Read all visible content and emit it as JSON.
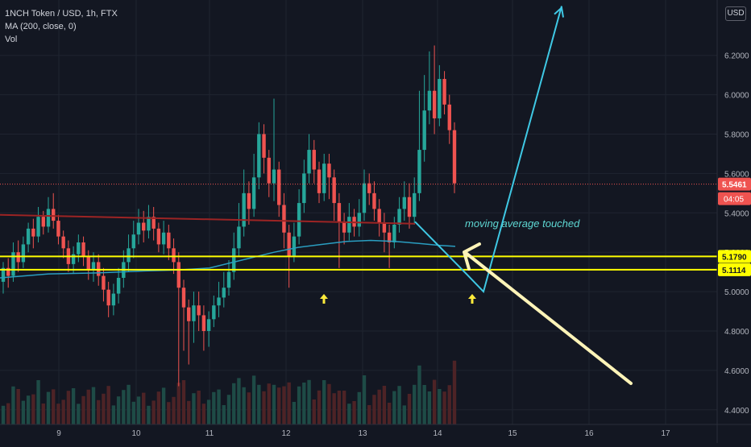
{
  "header": {
    "symbol": "1NCH Token / USD, 1h, FTX",
    "indicator": "MA (200, close, 0)",
    "volume": "Vol"
  },
  "currency": "USD",
  "price_tag": {
    "value": "5.5461",
    "countdown": "04:05",
    "color": "#ef5350"
  },
  "annotation": {
    "text": "moving average touched",
    "color": "#5ed7d3"
  },
  "colors": {
    "up": "#26a69a",
    "down": "#ef5350",
    "ma": "#2a9ec1",
    "level": "#ffff00",
    "trend": "#9c2424",
    "projection": "#3fc8e4",
    "pointer": "#fff4b8",
    "marker": "#ffeb3b"
  },
  "chart_data": {
    "type": "candlestick",
    "x_axis": {
      "ticks": [
        "9",
        "10",
        "11",
        "12",
        "13",
        "14",
        "15",
        "16",
        "17"
      ]
    },
    "y_axis": {
      "ticks": [
        "6.2000",
        "6.0000",
        "5.8000",
        "5.6000",
        "5.4000",
        "5.2000",
        "5.0000",
        "4.8000",
        "4.6000",
        "4.4000"
      ],
      "range": [
        4.37,
        6.45
      ]
    },
    "levels": [
      {
        "label": "5.1790",
        "value": 5.179
      },
      {
        "label": "5.1114",
        "value": 5.1114
      }
    ],
    "last_price": 5.5461,
    "ma_200": [
      [
        0,
        5.07
      ],
      [
        60,
        5.09
      ],
      [
        120,
        5.095
      ],
      [
        180,
        5.105
      ],
      [
        220,
        5.11
      ],
      [
        260,
        5.12
      ],
      [
        300,
        5.16
      ],
      [
        340,
        5.2
      ],
      [
        370,
        5.225
      ],
      [
        400,
        5.24
      ],
      [
        430,
        5.255
      ],
      [
        460,
        5.26
      ],
      [
        490,
        5.255
      ],
      [
        520,
        5.245
      ],
      [
        545,
        5.235
      ],
      [
        565,
        5.23
      ]
    ],
    "trendline": [
      [
        0,
        5.39
      ],
      [
        515,
        5.345
      ]
    ],
    "projection_path": [
      [
        515,
        5.355
      ],
      [
        580,
        5.085
      ],
      [
        600,
        5.0
      ],
      [
        697,
        6.45
      ]
    ],
    "candles": [
      [
        5.05,
        5.12,
        4.99,
        5.15
      ],
      [
        5.12,
        5.08,
        5.02,
        5.17
      ],
      [
        5.08,
        5.2,
        5.05,
        5.25
      ],
      [
        5.2,
        5.15,
        5.1,
        5.26
      ],
      [
        5.15,
        5.24,
        5.12,
        5.28
      ],
      [
        5.24,
        5.32,
        5.2,
        5.35
      ],
      [
        5.32,
        5.28,
        5.22,
        5.37
      ],
      [
        5.28,
        5.38,
        5.25,
        5.43
      ],
      [
        5.38,
        5.33,
        5.29,
        5.41
      ],
      [
        5.33,
        5.42,
        5.3,
        5.48
      ],
      [
        5.42,
        5.36,
        5.32,
        5.5
      ],
      [
        5.36,
        5.28,
        5.24,
        5.39
      ],
      [
        5.28,
        5.22,
        5.17,
        5.31
      ],
      [
        5.22,
        5.14,
        5.1,
        5.26
      ],
      [
        5.14,
        5.19,
        5.09,
        5.23
      ],
      [
        5.19,
        5.25,
        5.15,
        5.29
      ],
      [
        5.25,
        5.18,
        5.13,
        5.28
      ],
      [
        5.18,
        5.11,
        5.06,
        5.21
      ],
      [
        5.11,
        5.15,
        5.05,
        5.2
      ],
      [
        5.15,
        5.08,
        5.03,
        5.19
      ],
      [
        5.08,
        5.01,
        4.95,
        5.12
      ],
      [
        5.01,
        4.93,
        4.87,
        5.05
      ],
      [
        4.93,
        4.99,
        4.88,
        5.04
      ],
      [
        4.99,
        5.07,
        4.94,
        5.12
      ],
      [
        5.07,
        5.15,
        5.02,
        5.21
      ],
      [
        5.15,
        5.22,
        5.1,
        5.29
      ],
      [
        5.22,
        5.29,
        5.17,
        5.36
      ],
      [
        5.29,
        5.35,
        5.24,
        5.42
      ],
      [
        5.35,
        5.31,
        5.25,
        5.41
      ],
      [
        5.31,
        5.38,
        5.27,
        5.44
      ],
      [
        5.38,
        5.32,
        5.26,
        5.43
      ],
      [
        5.32,
        5.24,
        5.2,
        5.35
      ],
      [
        5.24,
        5.3,
        5.19,
        5.36
      ],
      [
        5.3,
        5.22,
        5.16,
        5.34
      ],
      [
        5.22,
        5.15,
        5.09,
        5.27
      ],
      [
        5.15,
        5.02,
        4.52,
        5.2
      ],
      [
        5.02,
        4.92,
        4.7,
        5.06
      ],
      [
        4.92,
        4.85,
        4.63,
        4.96
      ],
      [
        4.85,
        4.93,
        4.74,
        5.0
      ],
      [
        4.93,
        4.88,
        4.8,
        5.0
      ],
      [
        4.88,
        4.8,
        4.7,
        4.93
      ],
      [
        4.8,
        4.86,
        4.72,
        4.9
      ],
      [
        4.86,
        4.93,
        4.82,
        4.98
      ],
      [
        4.93,
        4.97,
        4.87,
        5.05
      ],
      [
        4.97,
        5.02,
        4.92,
        5.1
      ],
      [
        5.02,
        5.1,
        4.98,
        5.16
      ],
      [
        5.1,
        5.22,
        5.06,
        5.3
      ],
      [
        5.22,
        5.33,
        5.18,
        5.45
      ],
      [
        5.33,
        5.5,
        5.28,
        5.62
      ],
      [
        5.5,
        5.42,
        5.34,
        5.56
      ],
      [
        5.42,
        5.58,
        5.38,
        5.7
      ],
      [
        5.58,
        5.8,
        5.52,
        5.86
      ],
      [
        5.8,
        5.68,
        5.6,
        5.85
      ],
      [
        5.68,
        5.55,
        5.48,
        5.72
      ],
      [
        5.55,
        5.62,
        5.46,
        5.98
      ],
      [
        5.62,
        5.44,
        5.38,
        5.66
      ],
      [
        5.44,
        5.3,
        5.22,
        5.5
      ],
      [
        5.3,
        5.18,
        5.02,
        5.34
      ],
      [
        5.18,
        5.28,
        5.15,
        5.35
      ],
      [
        5.28,
        5.45,
        5.24,
        5.52
      ],
      [
        5.45,
        5.6,
        5.4,
        5.67
      ],
      [
        5.6,
        5.72,
        5.55,
        5.8
      ],
      [
        5.72,
        5.62,
        5.55,
        5.77
      ],
      [
        5.62,
        5.5,
        5.45,
        5.66
      ],
      [
        5.5,
        5.65,
        5.46,
        5.7
      ],
      [
        5.65,
        5.58,
        5.47,
        5.7
      ],
      [
        5.58,
        5.45,
        5.36,
        5.62
      ],
      [
        5.45,
        5.35,
        5.12,
        5.5
      ],
      [
        5.35,
        5.3,
        5.24,
        5.4
      ],
      [
        5.3,
        5.38,
        5.26,
        5.45
      ],
      [
        5.38,
        5.33,
        5.28,
        5.42
      ],
      [
        5.33,
        5.4,
        5.28,
        5.47
      ],
      [
        5.4,
        5.55,
        5.36,
        5.62
      ],
      [
        5.55,
        5.5,
        5.44,
        5.6
      ],
      [
        5.5,
        5.42,
        5.36,
        5.56
      ],
      [
        5.42,
        5.35,
        5.28,
        5.47
      ],
      [
        5.35,
        5.3,
        5.2,
        5.4
      ],
      [
        5.3,
        5.25,
        5.12,
        5.34
      ],
      [
        5.25,
        5.34,
        5.22,
        5.38
      ],
      [
        5.34,
        5.42,
        5.3,
        5.48
      ],
      [
        5.42,
        5.48,
        5.36,
        5.56
      ],
      [
        5.48,
        5.38,
        5.32,
        5.55
      ],
      [
        5.38,
        5.5,
        5.34,
        5.58
      ],
      [
        5.5,
        5.72,
        5.46,
        6.02
      ],
      [
        5.72,
        5.92,
        5.66,
        6.1
      ],
      [
        5.92,
        6.02,
        5.85,
        6.22
      ],
      [
        6.02,
        5.88,
        5.8,
        6.25
      ],
      [
        5.88,
        6.08,
        5.84,
        6.15
      ],
      [
        6.08,
        5.95,
        5.9,
        6.12
      ],
      [
        5.95,
        5.82,
        5.75,
        6.0
      ],
      [
        5.82,
        5.55,
        5.5,
        5.86
      ]
    ]
  }
}
